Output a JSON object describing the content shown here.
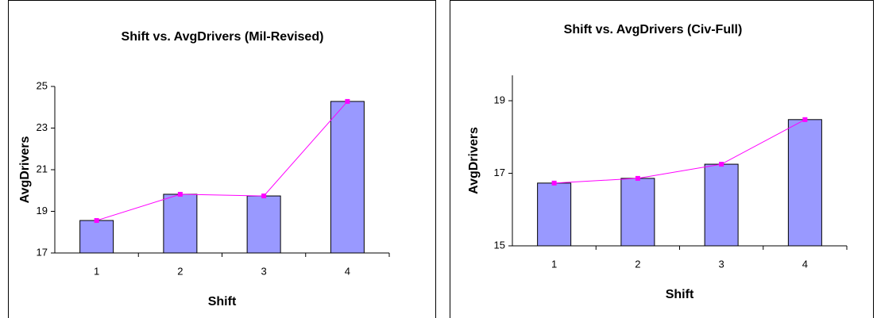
{
  "chart_data": [
    {
      "type": "bar",
      "title": "Shift vs. AvgDrivers (Mil-Revised)",
      "x_label": "Shift",
      "y_label": "AvgDrivers",
      "categories": [
        "1",
        "2",
        "3",
        "4"
      ],
      "series": [
        {
          "type": "bar",
          "color": "#9999ff",
          "values": [
            18.56,
            19.82,
            19.74,
            24.28
          ]
        },
        {
          "type": "line",
          "color": "#ff00ff",
          "values": [
            18.56,
            19.82,
            19.74,
            24.28
          ]
        }
      ],
      "ylim": [
        17,
        25
      ],
      "yticks": [
        17,
        19,
        21,
        23,
        25
      ]
    },
    {
      "type": "bar",
      "title": "Shift vs. AvgDrivers (Civ-Full)",
      "x_label": "Shift",
      "y_label": "AvgDrivers",
      "categories": [
        "1",
        "2",
        "3",
        "4"
      ],
      "series": [
        {
          "type": "bar",
          "color": "#9999ff",
          "values": [
            16.73,
            16.86,
            17.25,
            18.48
          ]
        },
        {
          "type": "line",
          "color": "#ff00ff",
          "values": [
            16.73,
            16.86,
            17.25,
            18.48
          ]
        }
      ],
      "ylim": [
        15,
        19.7
      ],
      "yticks": [
        15,
        17,
        19
      ]
    }
  ]
}
